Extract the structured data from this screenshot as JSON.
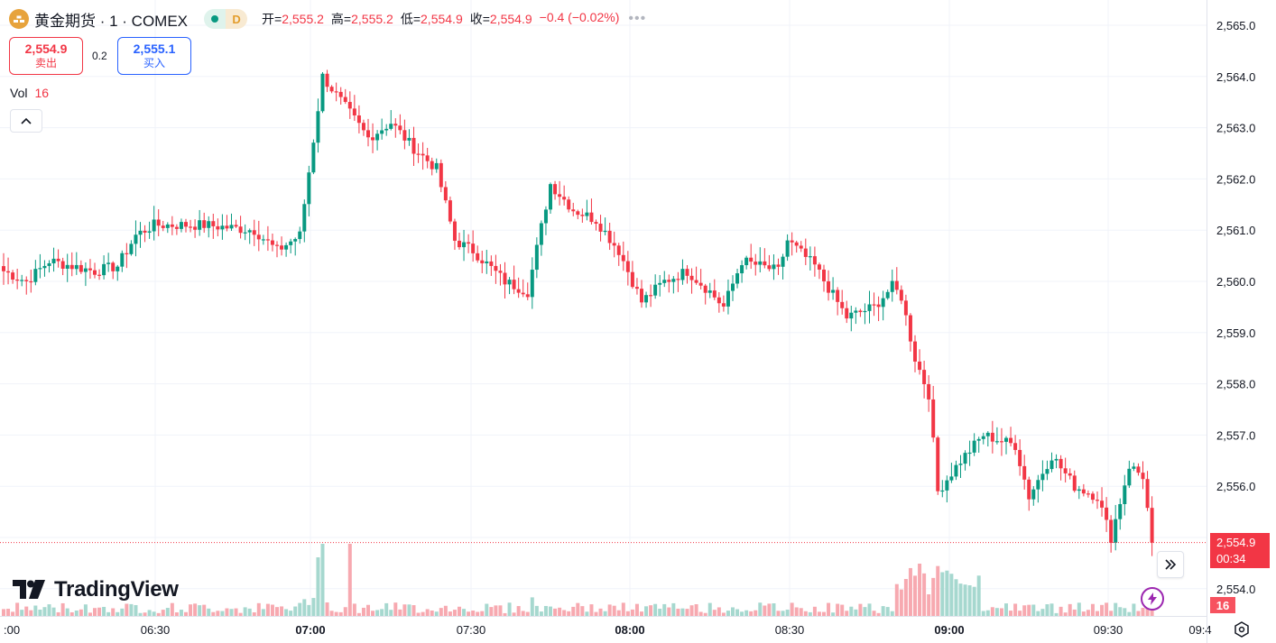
{
  "header": {
    "symbol_title": "黄金期货 · 1 · COMEX",
    "timeframe": "D",
    "ohlc": [
      {
        "label": "开=",
        "value": "2,555.2"
      },
      {
        "label": "高=",
        "value": "2,555.2"
      },
      {
        "label": "低=",
        "value": "2,554.9"
      },
      {
        "label": "收=",
        "value": "2,554.9"
      }
    ],
    "change": "−0.4 (−0.02%)",
    "more": "•••"
  },
  "trade": {
    "sell_price": "2,554.9",
    "sell_label": "卖出",
    "spread": "0.2",
    "buy_price": "2,555.1",
    "buy_label": "买入"
  },
  "volume_legend": {
    "label": "Vol",
    "value": "16"
  },
  "brand": "TradingView",
  "last_price_tag": {
    "price": "2,554.9",
    "countdown": "00:34"
  },
  "volume_tag": "16",
  "colors": {
    "up": "#089981",
    "down": "#f23645",
    "up_vol": "#a6d8cf",
    "down_vol": "#f7a9b0"
  },
  "chart_data": {
    "type": "candlestick",
    "interval": "1m",
    "y_ticks": [
      "2,565.0",
      "2,564.0",
      "2,563.0",
      "2,562.0",
      "2,561.0",
      "2,560.0",
      "2,559.0",
      "2,558.0",
      "2,557.0",
      "2,556.0",
      "2,555.0",
      "2,554.0"
    ],
    "y_range": [
      2553.7,
      2565.3
    ],
    "x_ticks": [
      ":00",
      "06:30",
      "07:00",
      "07:30",
      "08:00",
      "08:30",
      "09:00",
      "09:30",
      "09:4"
    ],
    "current_price": 2554.9,
    "grid": true,
    "keyframes": [
      [
        0,
        2560.2
      ],
      [
        5,
        2560.0
      ],
      [
        10,
        2560.4
      ],
      [
        20,
        2560.2
      ],
      [
        25,
        2560.3
      ],
      [
        29,
        2560.9
      ],
      [
        33,
        2561.1
      ],
      [
        44,
        2561.1
      ],
      [
        55,
        2561.0
      ],
      [
        60,
        2560.6
      ],
      [
        65,
        2560.9
      ],
      [
        70,
        2564.0
      ],
      [
        75,
        2563.4
      ],
      [
        80,
        2562.8
      ],
      [
        85,
        2563.1
      ],
      [
        90,
        2562.6
      ],
      [
        95,
        2562.2
      ],
      [
        99,
        2560.8
      ],
      [
        103,
        2560.6
      ],
      [
        110,
        2560.0
      ],
      [
        115,
        2559.8
      ],
      [
        120,
        2561.9
      ],
      [
        125,
        2561.4
      ],
      [
        130,
        2561.2
      ],
      [
        135,
        2560.6
      ],
      [
        140,
        2559.6
      ],
      [
        145,
        2560.0
      ],
      [
        150,
        2560.2
      ],
      [
        155,
        2559.8
      ],
      [
        158,
        2559.5
      ],
      [
        162,
        2560.4
      ],
      [
        170,
        2560.2
      ],
      [
        172,
        2560.8
      ],
      [
        178,
        2560.3
      ],
      [
        185,
        2559.3
      ],
      [
        191,
        2559.5
      ],
      [
        195,
        2559.9
      ],
      [
        197,
        2559.7
      ],
      [
        200,
        2558.5
      ],
      [
        203,
        2557.8
      ],
      [
        205,
        2555.9
      ],
      [
        210,
        2556.5
      ],
      [
        215,
        2557.0
      ],
      [
        222,
        2556.8
      ],
      [
        225,
        2555.8
      ],
      [
        230,
        2556.6
      ],
      [
        235,
        2556.0
      ],
      [
        240,
        2555.8
      ],
      [
        243,
        2555.0
      ],
      [
        247,
        2556.4
      ],
      [
        250,
        2556.2
      ],
      [
        252,
        2554.9
      ]
    ]
  }
}
